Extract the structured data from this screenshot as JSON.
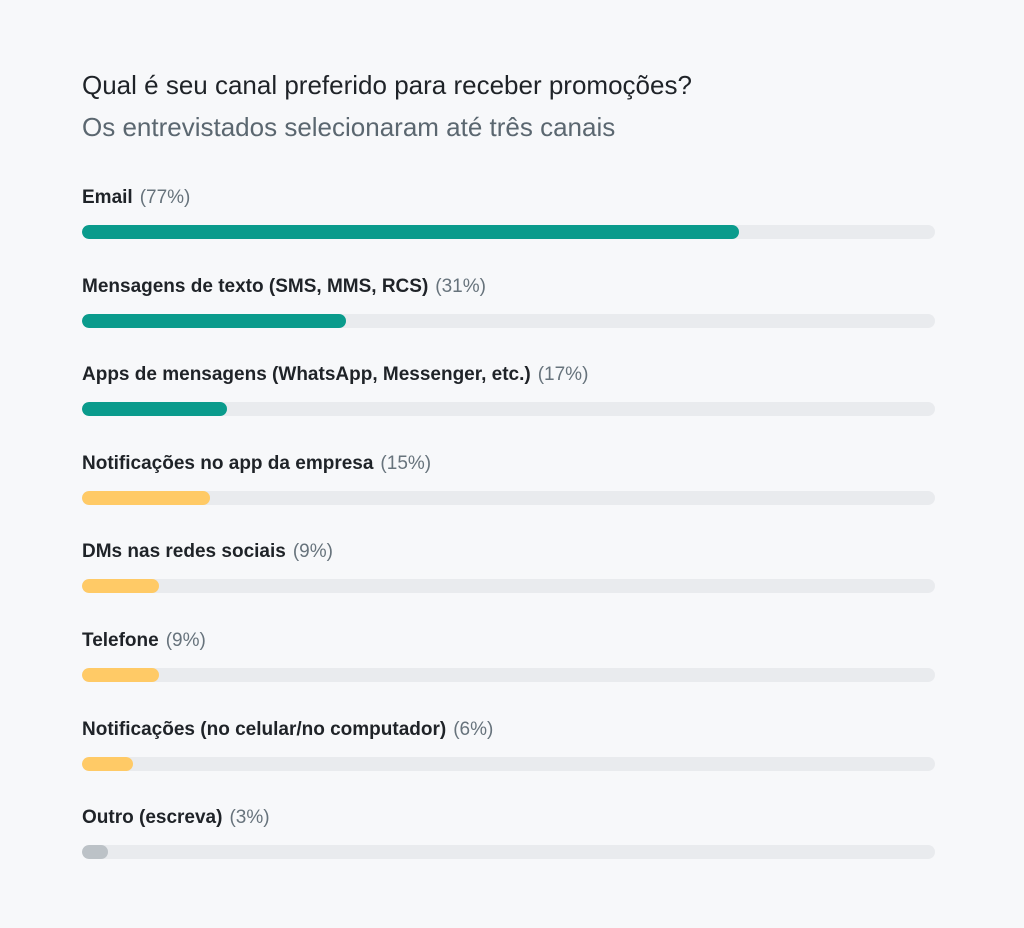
{
  "chart_data": {
    "type": "bar",
    "orientation": "horizontal",
    "title": "Qual é seu canal preferido para receber promoções?",
    "subtitle": "Os entrevistados selecionaram até três canais",
    "xlim": [
      0,
      100
    ],
    "grid": false,
    "categories": [
      "Email",
      "Mensagens de texto (SMS, MMS, RCS)",
      "Apps de mensagens (WhatsApp, Messenger, etc.)",
      "Notificações no app da empresa",
      "DMs nas redes sociais",
      "Telefone",
      "Notificações (no celular/no computador)",
      "Outro (escreva)"
    ],
    "values": [
      77,
      31,
      17,
      15,
      9,
      9,
      6,
      3
    ],
    "value_labels": [
      "(77%)",
      "(31%)",
      "(17%)",
      "(15%)",
      "(9%)",
      "(9%)",
      "(6%)",
      "(3%)"
    ],
    "bar_colors": [
      "#0a9b8c",
      "#0a9b8c",
      "#0a9b8c",
      "#ffca66",
      "#ffca66",
      "#ffca66",
      "#ffca66",
      "#bcc2c7"
    ],
    "track_color": "#e9ebee"
  }
}
